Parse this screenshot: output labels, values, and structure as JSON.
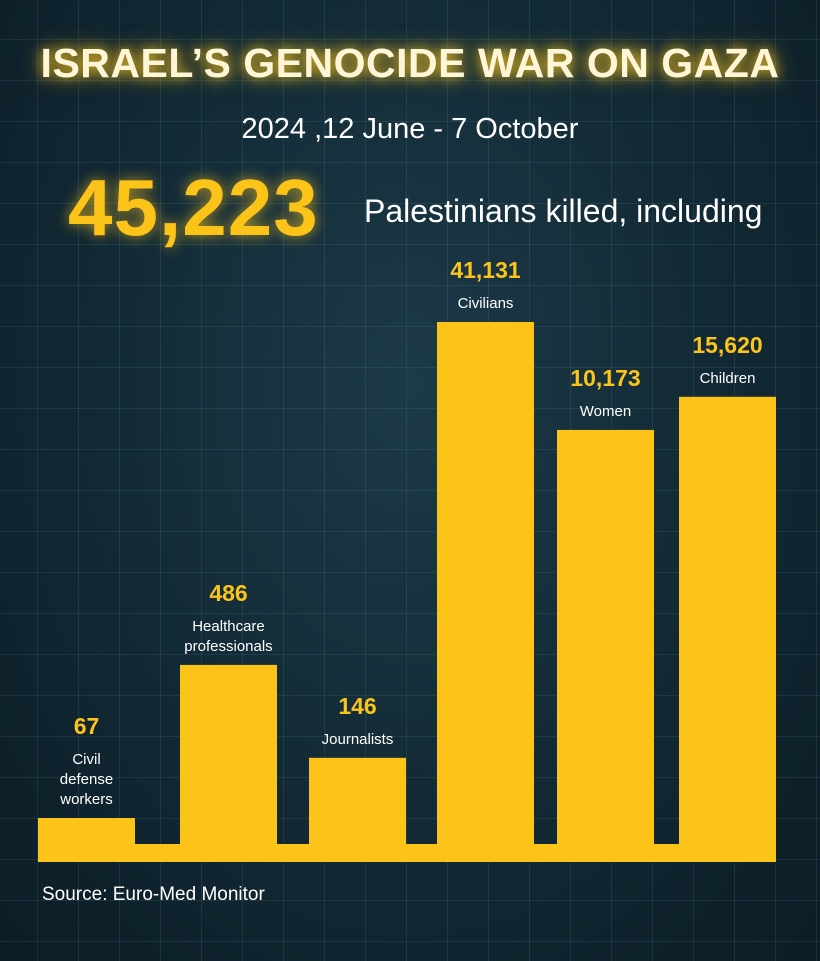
{
  "title": "ISRAEL’S GENOCIDE WAR ON GAZA",
  "date_range": "2024 ,12 June - 7 October",
  "headline_total": "45,223",
  "headline_label": "Palestinians killed, including",
  "source": "Source: Euro-Med Monitor",
  "colors": {
    "bar": "#fcc419",
    "background": "#132c38",
    "value_text": "#fcc419",
    "label_text": "#ffffff"
  },
  "chart_data": {
    "type": "bar",
    "categories": [
      "Civil defense workers",
      "Healthcare professionals",
      "Journalists",
      "Civilians",
      "Women",
      "Children"
    ],
    "category_lines": [
      [
        "Civil",
        "defense",
        "workers"
      ],
      [
        "Healthcare",
        "professionals"
      ],
      [
        "Journalists"
      ],
      [
        "Civilians"
      ],
      [
        "Women"
      ],
      [
        "Children"
      ]
    ],
    "values": [
      67,
      486,
      146,
      41131,
      10173,
      15620
    ],
    "value_labels": [
      "67",
      "486",
      "146",
      "41,131",
      "10,173",
      "15,620"
    ],
    "title": "",
    "xlabel": "",
    "ylabel": "",
    "grid": true,
    "legend": "none",
    "scale": "non-linear (bars not proportional to values)"
  }
}
